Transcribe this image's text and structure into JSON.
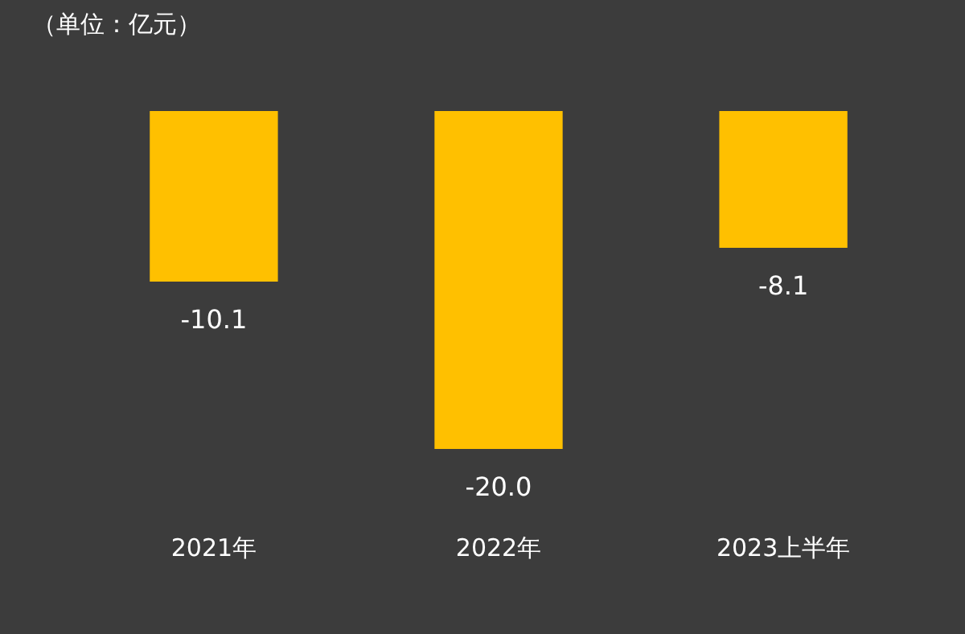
{
  "chart_data": {
    "type": "bar",
    "annotations": [
      "（单位：亿元）"
    ],
    "categories": [
      "2021年",
      "2022年",
      "2023上半年"
    ],
    "values": [
      -10.1,
      -20.0,
      -8.1
    ],
    "value_labels": [
      "-10.1",
      "-20.0",
      "-8.1"
    ],
    "color": "#ffc000",
    "tick_labels": "x"
  }
}
